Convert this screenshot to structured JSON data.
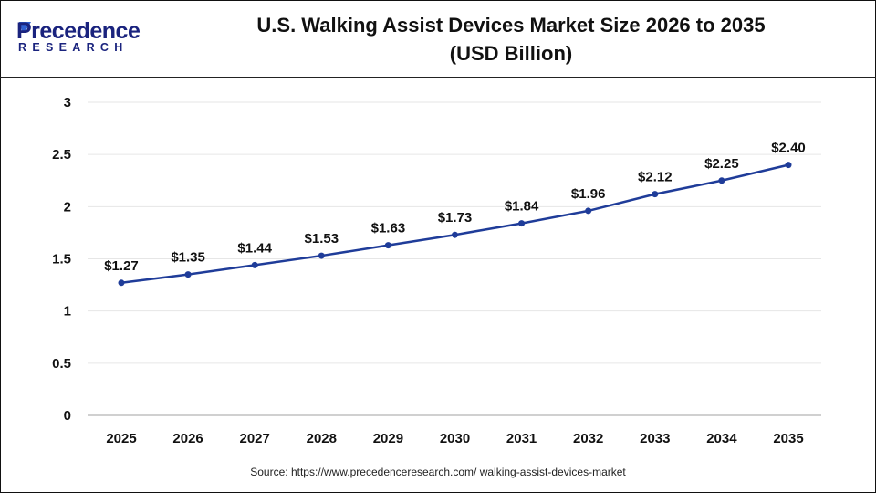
{
  "logo": {
    "text_main": "Precedence",
    "text_sub": "RESEARCH"
  },
  "title_line1": "U.S. Walking Assist Devices Market Size 2026 to 2035",
  "title_line2": "(USD Billion)",
  "source": "Source: https://www.precedenceresearch.com/ walking-assist-devices-market",
  "colors": {
    "line": "#1f3c99",
    "grid": "#e6e6e6",
    "axis": "#c0c0c0"
  },
  "chart_data": {
    "type": "line",
    "categories": [
      "2025",
      "2026",
      "2027",
      "2028",
      "2029",
      "2030",
      "2031",
      "2032",
      "2033",
      "2034",
      "2035"
    ],
    "series": [
      {
        "values": [
          1.27,
          1.35,
          1.44,
          1.53,
          1.63,
          1.73,
          1.84,
          1.96,
          2.12,
          2.25,
          2.4
        ]
      }
    ],
    "data_labels": [
      "$1.27",
      "$1.35",
      "$1.44",
      "$1.53",
      "$1.63",
      "$1.73",
      "$1.84",
      "$1.96",
      "$2.12",
      "$2.25",
      "$2.40"
    ],
    "yticks": [
      "0",
      "0.5",
      "1",
      "1.5",
      "2",
      "2.5",
      "3"
    ],
    "ylim": [
      0,
      3
    ],
    "grid": true,
    "xlabel": "",
    "ylabel": ""
  }
}
